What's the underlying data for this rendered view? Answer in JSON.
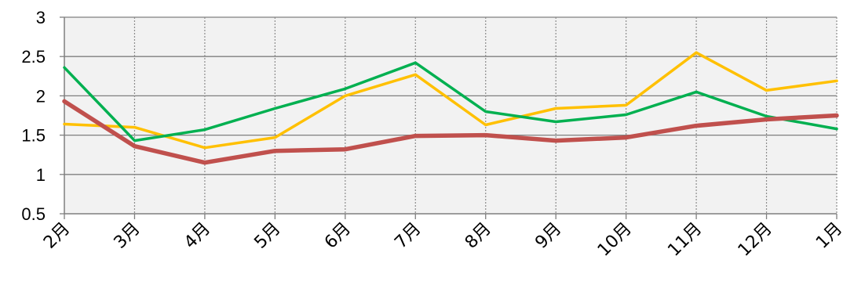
{
  "chart_data": {
    "type": "line",
    "title": "",
    "xlabel": "",
    "ylabel": "",
    "categories": [
      "2月",
      "3月",
      "4月",
      "5月",
      "6月",
      "7月",
      "8月",
      "9月",
      "10月",
      "11月",
      "12月",
      "1月"
    ],
    "y_ticks": [
      "0.5",
      "1",
      "1.5",
      "2",
      "2.5",
      "3"
    ],
    "ylim": [
      0.5,
      3
    ],
    "grid": {
      "horizontal": "solid",
      "vertical": "dotted"
    },
    "plot_background": "#f2f2f2",
    "series": [
      {
        "color": "#ffc000",
        "values": [
          1.64,
          1.6,
          1.34,
          1.47,
          2.0,
          2.27,
          1.63,
          1.84,
          1.88,
          2.55,
          2.07,
          2.19
        ]
      },
      {
        "color": "#00b050",
        "values": [
          2.36,
          1.43,
          1.57,
          1.84,
          2.09,
          2.42,
          1.8,
          1.67,
          1.76,
          2.05,
          1.74,
          1.58
        ]
      },
      {
        "color": "#c0504d",
        "values": [
          1.93,
          1.36,
          1.15,
          1.3,
          1.32,
          1.49,
          1.5,
          1.43,
          1.47,
          1.62,
          1.7,
          1.75
        ]
      }
    ]
  }
}
